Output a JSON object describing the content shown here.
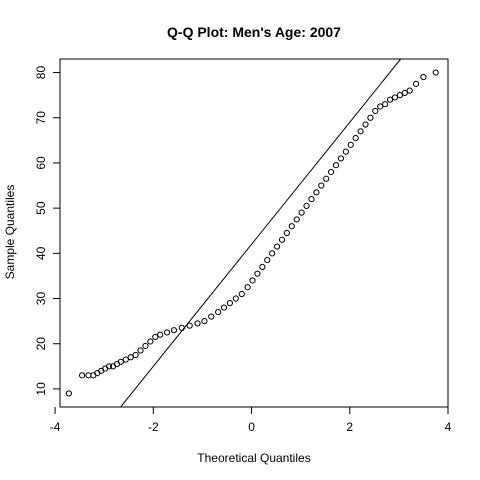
{
  "chart_data": {
    "type": "scatter",
    "title": "Q-Q Plot: Men's Age:  2007",
    "xlabel": "Theoretical Quantiles",
    "ylabel": "Sample Quantiles",
    "xlim": [
      -3.9,
      4.0
    ],
    "ylim": [
      6,
      83
    ],
    "xticks": [
      -4,
      -2,
      0,
      2,
      4
    ],
    "yticks": [
      10,
      20,
      30,
      40,
      50,
      60,
      70,
      80
    ],
    "grid": false,
    "point_style": "open-circle",
    "reference_line": {
      "intercept": 42.0,
      "slope": 13.5
    },
    "points": [
      [
        -3.72,
        9
      ],
      [
        -3.45,
        13
      ],
      [
        -3.32,
        13
      ],
      [
        -3.22,
        13
      ],
      [
        -3.14,
        13.5
      ],
      [
        -3.06,
        14
      ],
      [
        -2.98,
        14.5
      ],
      [
        -2.9,
        15
      ],
      [
        -2.82,
        15
      ],
      [
        -2.74,
        15.5
      ],
      [
        -2.66,
        16
      ],
      [
        -2.56,
        16.5
      ],
      [
        -2.46,
        17
      ],
      [
        -2.36,
        17.5
      ],
      [
        -2.26,
        18.5
      ],
      [
        -2.16,
        19.5
      ],
      [
        -2.06,
        20.5
      ],
      [
        -1.96,
        21.5
      ],
      [
        -1.86,
        22
      ],
      [
        -1.72,
        22.5
      ],
      [
        -1.58,
        23
      ],
      [
        -1.42,
        23.5
      ],
      [
        -1.26,
        24
      ],
      [
        -1.1,
        24.5
      ],
      [
        -0.96,
        25
      ],
      [
        -0.82,
        26
      ],
      [
        -0.68,
        27
      ],
      [
        -0.56,
        28
      ],
      [
        -0.44,
        29
      ],
      [
        -0.32,
        30
      ],
      [
        -0.2,
        31
      ],
      [
        -0.08,
        32.5
      ],
      [
        0.02,
        34
      ],
      [
        0.12,
        35.5
      ],
      [
        0.22,
        37
      ],
      [
        0.32,
        38.5
      ],
      [
        0.42,
        40
      ],
      [
        0.52,
        41.5
      ],
      [
        0.62,
        43
      ],
      [
        0.72,
        44.5
      ],
      [
        0.82,
        46
      ],
      [
        0.92,
        47.5
      ],
      [
        1.02,
        49
      ],
      [
        1.12,
        50.5
      ],
      [
        1.22,
        52
      ],
      [
        1.32,
        53.5
      ],
      [
        1.42,
        55
      ],
      [
        1.52,
        56.5
      ],
      [
        1.62,
        58
      ],
      [
        1.72,
        59.5
      ],
      [
        1.82,
        61
      ],
      [
        1.92,
        62.5
      ],
      [
        2.02,
        64
      ],
      [
        2.12,
        65.5
      ],
      [
        2.22,
        67
      ],
      [
        2.32,
        68.5
      ],
      [
        2.42,
        70
      ],
      [
        2.52,
        71.5
      ],
      [
        2.62,
        72.5
      ],
      [
        2.72,
        73
      ],
      [
        2.82,
        74
      ],
      [
        2.92,
        74.5
      ],
      [
        3.02,
        75
      ],
      [
        3.12,
        75.5
      ],
      [
        3.22,
        76
      ],
      [
        3.35,
        77.5
      ],
      [
        3.5,
        79
      ],
      [
        3.75,
        80
      ]
    ]
  }
}
